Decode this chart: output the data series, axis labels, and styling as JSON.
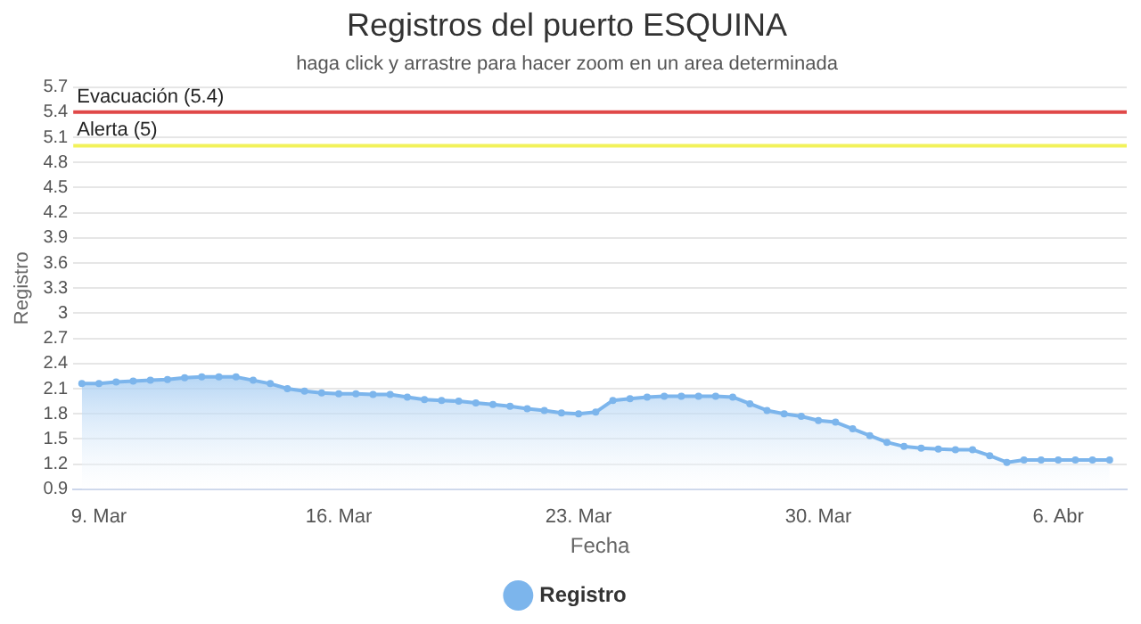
{
  "chart_data": {
    "type": "area",
    "title": "Registros del puerto ESQUINA",
    "subtitle": "haga click y arrastre para hacer zoom en un area determinada",
    "xlabel": "Fecha",
    "ylabel": "Registro",
    "x": [
      "--03-08T12:00",
      "--03-09T00:00",
      "--03-09T12:00",
      "--03-10T00:00",
      "--03-10T12:00",
      "--03-11T00:00",
      "--03-11T12:00",
      "--03-12T00:00",
      "--03-12T12:00",
      "--03-13T00:00",
      "--03-13T12:00",
      "--03-14T00:00",
      "--03-14T12:00",
      "--03-15T00:00",
      "--03-15T12:00",
      "--03-16T00:00",
      "--03-16T12:00",
      "--03-17T00:00",
      "--03-17T12:00",
      "--03-18T00:00",
      "--03-18T12:00",
      "--03-19T00:00",
      "--03-19T12:00",
      "--03-20T00:00",
      "--03-20T12:00",
      "--03-21T00:00",
      "--03-21T12:00",
      "--03-22T00:00",
      "--03-22T12:00",
      "--03-23T00:00",
      "--03-23T12:00",
      "--03-24T00:00",
      "--03-24T12:00",
      "--03-25T00:00",
      "--03-25T12:00",
      "--03-26T00:00",
      "--03-26T12:00",
      "--03-27T00:00",
      "--03-27T12:00",
      "--03-28T00:00",
      "--03-28T12:00",
      "--03-29T00:00",
      "--03-29T12:00",
      "--03-30T00:00",
      "--03-30T12:00",
      "--03-31T00:00",
      "--03-31T12:00",
      "--04-01T00:00",
      "--04-01T12:00",
      "--04-02T00:00",
      "--04-02T12:00",
      "--04-03T00:00",
      "--04-03T12:00",
      "--04-04T00:00",
      "--04-04T12:00",
      "--04-05T00:00",
      "--04-05T12:00",
      "--04-06T00:00",
      "--04-06T12:00",
      "--04-07T00:00",
      "--04-07T12:00"
    ],
    "series": [
      {
        "name": "Registro",
        "color": "#7cb5ec",
        "values": [
          2.16,
          2.16,
          2.18,
          2.19,
          2.2,
          2.21,
          2.23,
          2.24,
          2.24,
          2.24,
          2.2,
          2.16,
          2.1,
          2.07,
          2.05,
          2.04,
          2.04,
          2.03,
          2.03,
          2.0,
          1.97,
          1.96,
          1.95,
          1.93,
          1.91,
          1.89,
          1.86,
          1.84,
          1.81,
          1.8,
          1.82,
          1.96,
          1.98,
          2.0,
          2.01,
          2.01,
          2.01,
          2.01,
          2.0,
          1.92,
          1.84,
          1.8,
          1.77,
          1.72,
          1.7,
          1.62,
          1.54,
          1.46,
          1.41,
          1.39,
          1.38,
          1.37,
          1.37,
          1.3,
          1.22,
          1.25,
          1.25,
          1.25,
          1.25,
          1.25,
          1.25
        ]
      }
    ],
    "xlim": [
      "--03-08T06:00",
      "--04-08T00:00"
    ],
    "xticks": [
      {
        "value": "--03-09",
        "label": "9. Mar"
      },
      {
        "value": "--03-16",
        "label": "16. Mar"
      },
      {
        "value": "--03-23",
        "label": "23. Mar"
      },
      {
        "value": "--03-30",
        "label": "30. Mar"
      },
      {
        "value": "--04-06",
        "label": "6. Abr"
      }
    ],
    "ylim": [
      0.9,
      5.7
    ],
    "yticks": [
      0.9,
      1.2,
      1.5,
      1.8,
      2.1,
      2.4,
      2.7,
      3,
      3.3,
      3.6,
      3.9,
      4.2,
      4.5,
      4.8,
      5.1,
      5.4,
      5.7
    ],
    "ref_lines": [
      {
        "axis": "y",
        "value": 5.4,
        "label": "Evacuación (5.4)",
        "color": "#e04848"
      },
      {
        "axis": "y",
        "value": 5,
        "label": "Alerta (5)",
        "color": "#f2f25a"
      }
    ],
    "grid": "y",
    "legend": "bottom",
    "marker": "circle",
    "line_style": "solid"
  }
}
